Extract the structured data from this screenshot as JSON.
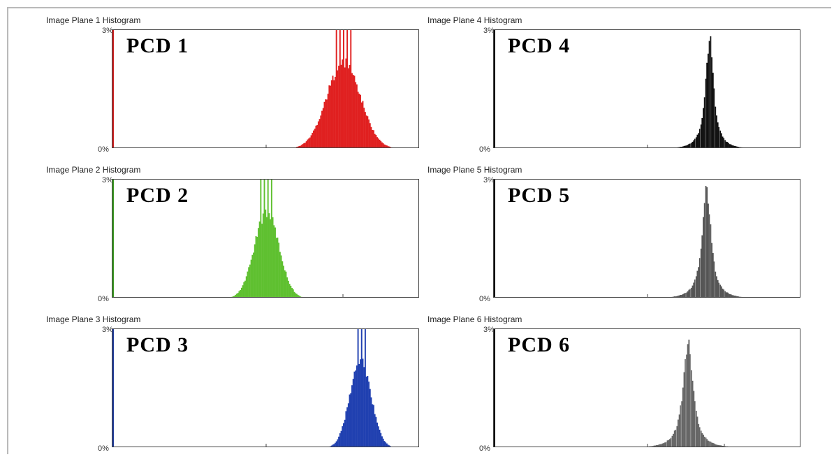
{
  "chart_data": [
    {
      "type": "bar",
      "title": "Image Plane 1 Histogram",
      "label": "PCD 1",
      "color": "#e02020",
      "axis_color": "#d02020",
      "ylim": [
        "0%",
        "3%"
      ],
      "peak_x": 0.75,
      "width": 0.055,
      "peak_h": 0.78,
      "spikes": true
    },
    {
      "type": "bar",
      "title": "Image Plane 2 Histogram",
      "label": "PCD 2",
      "color": "#5fc030",
      "axis_color": "#3a9a20",
      "ylim": [
        "0%",
        "3%"
      ],
      "peak_x": 0.5,
      "width": 0.04,
      "peak_h": 0.78,
      "spikes": true
    },
    {
      "type": "bar",
      "title": "Image Plane 3 Histogram",
      "label": "PCD 3",
      "color": "#2040b0",
      "axis_color": "#203c9c",
      "ylim": [
        "0%",
        "3%"
      ],
      "peak_x": 0.805,
      "width": 0.035,
      "peak_h": 0.78,
      "spikes": true
    },
    {
      "type": "bar",
      "title": "Image Plane 4 Histogram",
      "label": "PCD 4",
      "color": "#111111",
      "axis_color": "#000000",
      "ylim": [
        "0%",
        "3%"
      ],
      "peak_x": 0.7,
      "width": 0.02,
      "peak_h": 1.0,
      "spikes": false
    },
    {
      "type": "bar",
      "title": "Image Plane 5 Histogram",
      "label": "PCD 5",
      "color": "#555555",
      "axis_color": "#000000",
      "ylim": [
        "0%",
        "3%"
      ],
      "peak_x": 0.69,
      "width": 0.022,
      "peak_h": 1.0,
      "spikes": false
    },
    {
      "type": "bar",
      "title": "Image Plane 6 Histogram",
      "label": "PCD 6",
      "color": "#666666",
      "axis_color": "#000000",
      "ylim": [
        "0%",
        "3%"
      ],
      "peak_x": 0.63,
      "width": 0.025,
      "peak_h": 0.95,
      "spikes": false
    }
  ]
}
